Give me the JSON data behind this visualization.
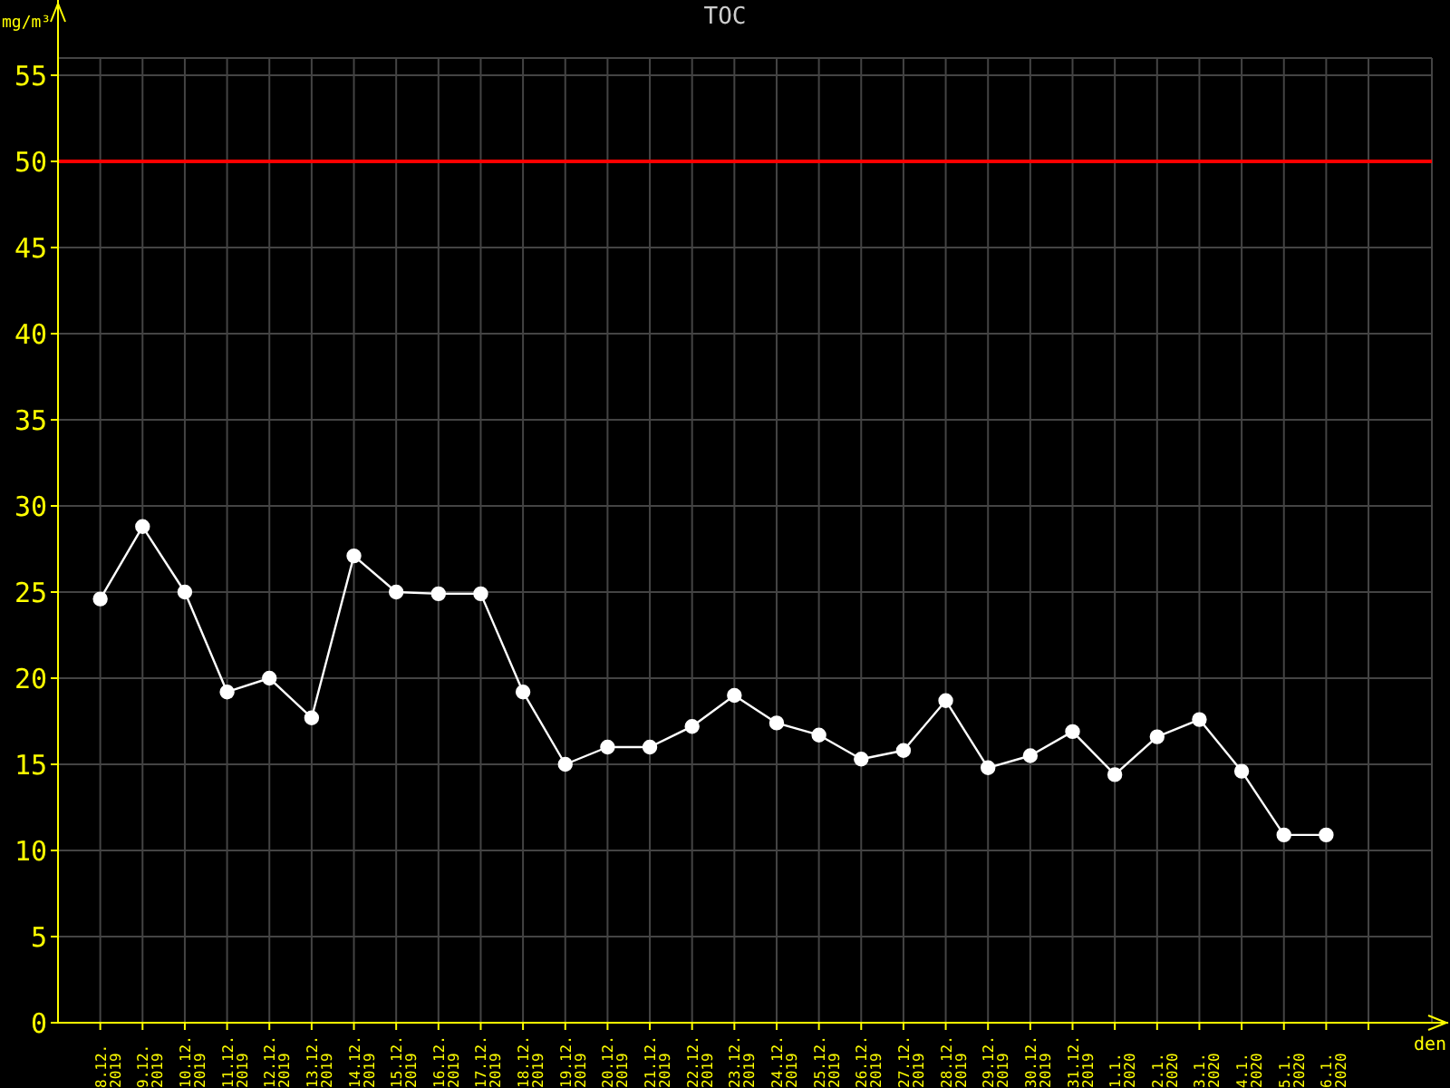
{
  "chart_data": {
    "type": "line",
    "title": "TOC",
    "xlabel": "den",
    "ylabel": "mg/m³",
    "categories": [
      "8.12.\n2019",
      "9.12.\n2019",
      "10.12.\n2019",
      "11.12.\n2019",
      "12.12.\n2019",
      "13.12.\n2019",
      "14.12.\n2019",
      "15.12.\n2019",
      "16.12.\n2019",
      "17.12.\n2019",
      "18.12.\n2019",
      "19.12.\n2019",
      "20.12.\n2019",
      "21.12.\n2019",
      "22.12.\n2019",
      "23.12.\n2019",
      "24.12.\n2019",
      "25.12.\n2019",
      "26.12.\n2019",
      "27.12.\n2019",
      "28.12.\n2019",
      "29.12.\n2019",
      "30.12.\n2019",
      "31.12.\n2019",
      "1.1.\n2020",
      "2.1.\n2020",
      "3.1.\n2020",
      "4.1.\n2020",
      "5.1.\n2020",
      "6.1.\n2020"
    ],
    "series": [
      {
        "color": "#ffffff",
        "values": [
          24.6,
          28.8,
          25.0,
          19.2,
          20.0,
          17.7,
          27.1,
          25.0,
          24.9,
          24.9,
          19.2,
          15.0,
          16.0,
          16.0,
          17.2,
          19.0,
          17.4,
          16.7,
          15.3,
          15.8,
          18.7,
          14.8,
          15.5,
          16.9,
          14.4,
          16.6,
          17.6,
          14.6,
          10.9,
          10.9
        ]
      }
    ],
    "ylim": [
      0,
      56
    ],
    "yticks": [
      0,
      5,
      10,
      15,
      20,
      25,
      30,
      35,
      40,
      45,
      50,
      55
    ],
    "ref_lines": [
      {
        "axis": "y",
        "value": 50,
        "color": "#ff0000"
      }
    ],
    "grid": true,
    "legend": false,
    "marker": "circle",
    "line_style": "solid"
  }
}
